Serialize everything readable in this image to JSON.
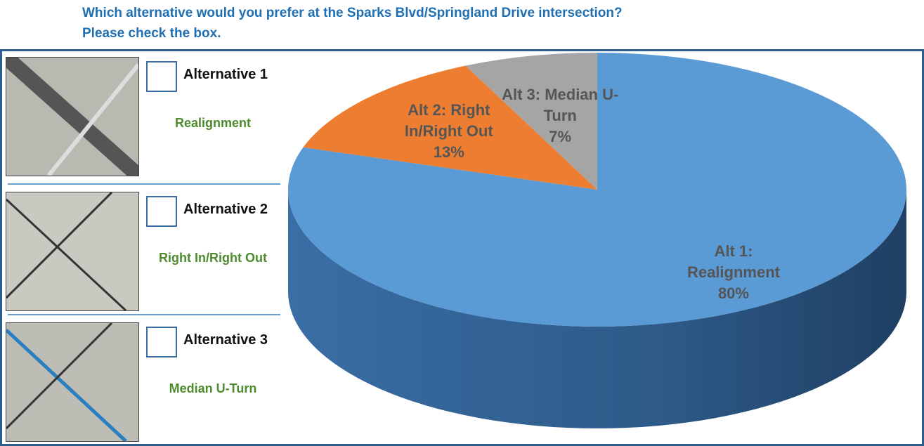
{
  "header": {
    "question": "Which alternative would you prefer at the Sparks Blvd/Springland Drive intersection?",
    "instruction": "Please check the box."
  },
  "alternatives": [
    {
      "title": "Alternative 1",
      "name": "Realignment"
    },
    {
      "title": "Alternative 2",
      "name": "Right In/Right Out"
    },
    {
      "title": "Alternative 3",
      "name": "Median U-Turn"
    }
  ],
  "chart_data": {
    "type": "pie",
    "categories": [
      "Alt 1: Realignment",
      "Alt 2: Right In/Right Out",
      "Alt 3: Median U-Turn"
    ],
    "values": [
      80,
      13,
      7
    ],
    "value_labels": [
      "80%",
      "13%",
      "7%"
    ],
    "colors": [
      "#5b9bd5",
      "#ed7d31",
      "#a5a5a5"
    ]
  }
}
